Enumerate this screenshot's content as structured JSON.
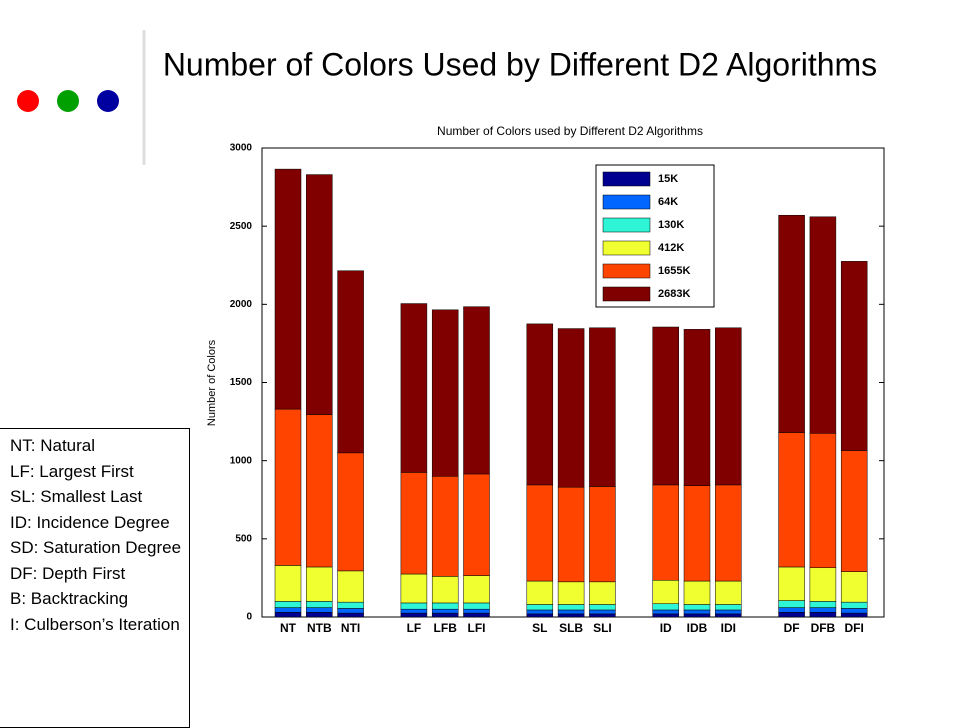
{
  "slide_title": "Number of Colors Used by Different D2 Algorithms",
  "notes": [
    "NT: Natural",
    "LF: Largest First",
    "SL: Smallest Last",
    "ID: Incidence Degree",
    "SD: Saturation Degree",
    "DF: Depth First",
    "B: Backtracking",
    "I: Culberson’s Iteration"
  ],
  "chart_data": {
    "type": "stacked_bar",
    "title": "Number of Colors used by Different D2 Algorithms",
    "y_label": "Number of Colors",
    "categories": [
      "NT",
      "NTB",
      "NTI",
      "LF",
      "LFB",
      "LFI",
      "SL",
      "SLB",
      "SLI",
      "ID",
      "IDB",
      "IDI",
      "DF",
      "DFB",
      "DFI"
    ],
    "ylim": [
      0,
      3000
    ],
    "yticks": [
      0,
      500,
      1000,
      1500,
      2000,
      2500,
      3000
    ],
    "legend": "upper right",
    "series": [
      {
        "name": "15K",
        "color": "#000090",
        "values": [
          30,
          30,
          25,
          25,
          25,
          25,
          20,
          20,
          20,
          20,
          20,
          20,
          30,
          30,
          25
        ]
      },
      {
        "name": "64K",
        "color": "#0066ff",
        "values": [
          30,
          30,
          30,
          25,
          25,
          25,
          25,
          25,
          25,
          25,
          25,
          25,
          30,
          30,
          30
        ]
      },
      {
        "name": "130K",
        "color": "#2ef5d6",
        "values": [
          40,
          40,
          40,
          40,
          40,
          40,
          35,
          35,
          35,
          40,
          35,
          35,
          45,
          40,
          40
        ]
      },
      {
        "name": "412K",
        "color": "#f0ff30",
        "values": [
          230,
          220,
          200,
          185,
          170,
          175,
          150,
          145,
          145,
          150,
          150,
          150,
          215,
          215,
          195
        ]
      },
      {
        "name": "1655K",
        "color": "#ff4400",
        "values": [
          1000,
          975,
          755,
          650,
          640,
          650,
          615,
          605,
          610,
          610,
          610,
          615,
          860,
          860,
          775
        ]
      },
      {
        "name": "2683K",
        "color": "#800000",
        "values": [
          1535,
          1535,
          1165,
          1080,
          1065,
          1070,
          1030,
          1015,
          1015,
          1010,
          1000,
          1005,
          1390,
          1385,
          1210
        ]
      }
    ]
  }
}
